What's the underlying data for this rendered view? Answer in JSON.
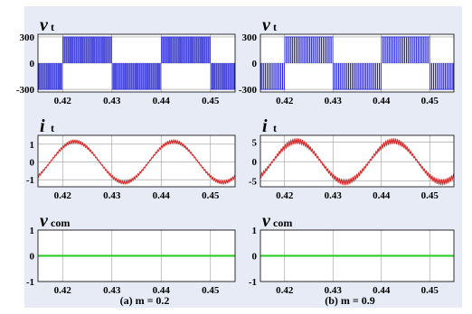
{
  "colors": {
    "v": "#1f1fd6",
    "i": "#d42a2a",
    "vcom": "#22cc22",
    "grid": "#9a9a9a",
    "plot_bg": "#ffffff"
  },
  "chart_data": [
    {
      "type": "line",
      "ylabel_main": "v",
      "ylabel_sub": "t",
      "xlim": [
        0.415,
        0.455
      ],
      "ylim": [
        -330,
        330
      ],
      "xticks": [
        "0.42",
        "0.43",
        "0.44",
        "0.45"
      ],
      "yticks": [
        "300",
        "0",
        "-300"
      ],
      "series": [
        {
          "kind": "pwm_square",
          "amplitude": 300,
          "freq_hz": 50,
          "pulse_duty": 0.55,
          "pulses_per_half_cycle": 25
        }
      ]
    },
    {
      "type": "line",
      "ylabel_main": "v",
      "ylabel_sub": "t",
      "xlim": [
        0.415,
        0.455
      ],
      "ylim": [
        -330,
        330
      ],
      "xticks": [
        "0.42",
        "0.43",
        "0.44",
        "0.45"
      ],
      "yticks": [
        "300",
        "0",
        "-300"
      ],
      "series": [
        {
          "kind": "pwm_square",
          "amplitude": 300,
          "freq_hz": 50,
          "pulse_duty": 0.8,
          "pulses_per_half_cycle": 25
        }
      ]
    },
    {
      "type": "line",
      "ylabel_main": "i",
      "ylabel_sub": "t",
      "xlim": [
        0.415,
        0.455
      ],
      "ylim": [
        -1.4,
        1.5
      ],
      "xticks": [
        "0.42",
        "0.43",
        "0.44",
        "0.45"
      ],
      "yticks": [
        "1",
        "0",
        "-1"
      ],
      "series": [
        {
          "kind": "sine_ripple",
          "amplitude": 1.15,
          "freq_hz": 50,
          "phase_peak_t": 0.4225,
          "ripple": 0.08
        }
      ]
    },
    {
      "type": "line",
      "ylabel_main": "i",
      "ylabel_sub": "t",
      "xlim": [
        0.415,
        0.455
      ],
      "ylim": [
        -6.5,
        6.8
      ],
      "xticks": [
        "0.42",
        "0.43",
        "0.44",
        "0.45"
      ],
      "yticks": [
        "5",
        "0",
        "-5"
      ],
      "series": [
        {
          "kind": "sine_ripple",
          "amplitude": 5.3,
          "freq_hz": 50,
          "phase_peak_t": 0.4225,
          "ripple": 0.12
        }
      ]
    },
    {
      "type": "line",
      "ylabel_main": "v",
      "ylabel_sub": "com",
      "xlim": [
        0.415,
        0.455
      ],
      "ylim": [
        -1,
        1
      ],
      "xticks": [
        "0.42",
        "0.43",
        "0.44",
        "0.45"
      ],
      "yticks": [
        "1",
        "0",
        "-1"
      ],
      "series": [
        {
          "kind": "constant",
          "value": 0
        }
      ]
    },
    {
      "type": "line",
      "ylabel_main": "v",
      "ylabel_sub": "com",
      "xlim": [
        0.415,
        0.455
      ],
      "ylim": [
        -1,
        1
      ],
      "xticks": [
        "0.42",
        "0.43",
        "0.44",
        "0.45"
      ],
      "yticks": [
        "1",
        "0",
        "-1"
      ],
      "series": [
        {
          "kind": "constant",
          "value": 0
        }
      ]
    }
  ],
  "captions": {
    "left": "(a) m = 0.2",
    "right": "(b) m = 0.9"
  }
}
